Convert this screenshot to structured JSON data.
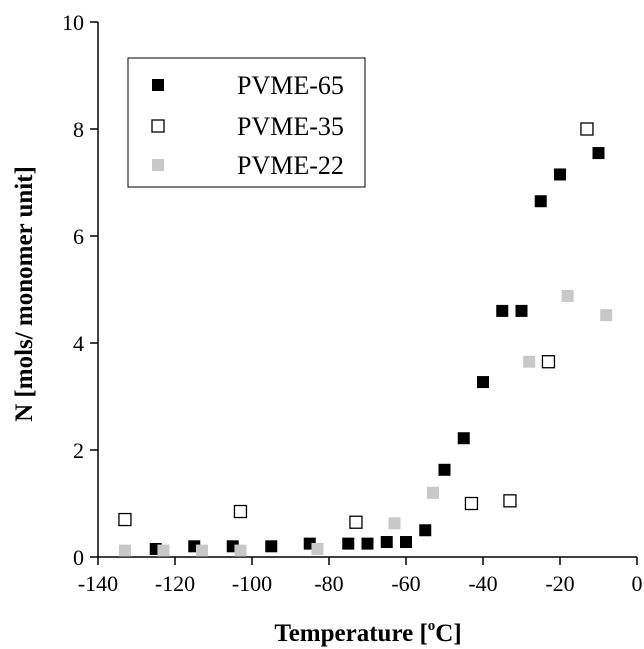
{
  "chart_data": {
    "type": "scatter",
    "xlabel": {
      "main": "Temperature [",
      "superscript": "o",
      "unit": "C]"
    },
    "ylabel": "N [mols/ monomer unit]",
    "xlim": [
      -140,
      0
    ],
    "ylim": [
      0,
      10
    ],
    "x_ticks": [
      -140,
      -120,
      -100,
      -80,
      -60,
      -40,
      -20,
      0
    ],
    "y_ticks": [
      0,
      2,
      4,
      6,
      8,
      10
    ],
    "legend_position": "top-left",
    "series": [
      {
        "name": "PVME-65",
        "marker": "filled-square",
        "color": "#000000",
        "points": [
          {
            "x": -125,
            "y": 0.15
          },
          {
            "x": -115,
            "y": 0.2
          },
          {
            "x": -105,
            "y": 0.2
          },
          {
            "x": -95,
            "y": 0.2
          },
          {
            "x": -85,
            "y": 0.25
          },
          {
            "x": -75,
            "y": 0.25
          },
          {
            "x": -70,
            "y": 0.25
          },
          {
            "x": -65,
            "y": 0.28
          },
          {
            "x": -60,
            "y": 0.28
          },
          {
            "x": -55,
            "y": 0.5
          },
          {
            "x": -50,
            "y": 1.63
          },
          {
            "x": -45,
            "y": 2.22
          },
          {
            "x": -40,
            "y": 3.27
          },
          {
            "x": -35,
            "y": 4.6
          },
          {
            "x": -30,
            "y": 4.6
          },
          {
            "x": -25,
            "y": 6.65
          },
          {
            "x": -20,
            "y": 7.15
          },
          {
            "x": -10,
            "y": 7.55
          }
        ]
      },
      {
        "name": "PVME-35",
        "marker": "open-square",
        "color": "#000000",
        "points": [
          {
            "x": -133,
            "y": 0.7
          },
          {
            "x": -103,
            "y": 0.85
          },
          {
            "x": -73,
            "y": 0.65
          },
          {
            "x": -43,
            "y": 1.0
          },
          {
            "x": -33,
            "y": 1.05
          },
          {
            "x": -23,
            "y": 3.65
          },
          {
            "x": -13,
            "y": 8.0
          }
        ]
      },
      {
        "name": "PVME-22",
        "marker": "filled-square",
        "color": "#c8c8c8",
        "points": [
          {
            "x": -133,
            "y": 0.12
          },
          {
            "x": -123,
            "y": 0.12
          },
          {
            "x": -113,
            "y": 0.12
          },
          {
            "x": -103,
            "y": 0.12
          },
          {
            "x": -83,
            "y": 0.15
          },
          {
            "x": -63,
            "y": 0.63
          },
          {
            "x": -53,
            "y": 1.2
          },
          {
            "x": -28,
            "y": 3.65
          },
          {
            "x": -18,
            "y": 4.88
          },
          {
            "x": -8,
            "y": 4.52
          }
        ]
      }
    ]
  }
}
